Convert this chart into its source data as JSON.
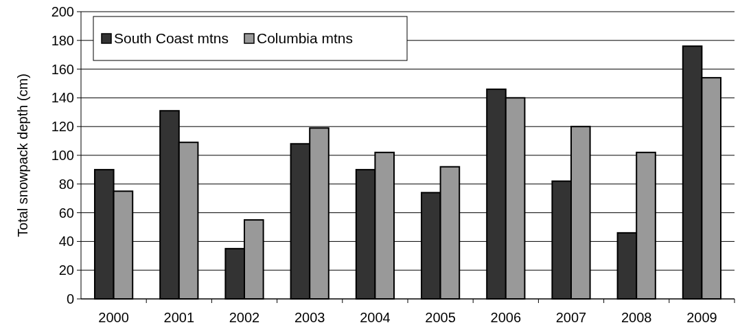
{
  "chart_data": {
    "type": "bar",
    "ylabel": "Total snowpack depth (cm)",
    "categories": [
      "2000",
      "2001",
      "2002",
      "2003",
      "2004",
      "2005",
      "2006",
      "2007",
      "2008",
      "2009"
    ],
    "series": [
      {
        "name": "South Coast mtns",
        "color": "#333333",
        "values": [
          90,
          131,
          35,
          108,
          90,
          74,
          146,
          82,
          46,
          176
        ]
      },
      {
        "name": "Columbia mtns",
        "color": "#999999",
        "values": [
          75,
          109,
          55,
          119,
          102,
          92,
          140,
          120,
          102,
          154
        ]
      }
    ],
    "ylim": [
      0,
      200
    ],
    "yticks": [
      0,
      20,
      40,
      60,
      80,
      100,
      120,
      140,
      160,
      180,
      200
    ],
    "grid": "y",
    "legend": "top left"
  }
}
